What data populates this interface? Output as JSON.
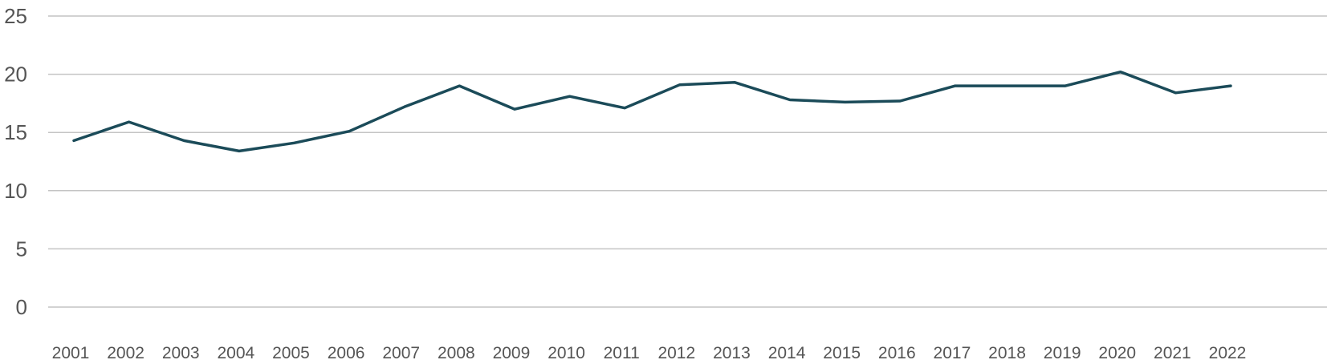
{
  "chart_data": {
    "type": "line",
    "title": "",
    "xlabel": "",
    "ylabel": "",
    "ylim": [
      0,
      25
    ],
    "yticks": [
      0,
      5,
      10,
      15,
      20,
      25
    ],
    "grid": true,
    "legend": "none",
    "categories": [
      "2001",
      "2002",
      "2003",
      "2004",
      "2005",
      "2006",
      "2007",
      "2008",
      "2009",
      "2010",
      "2011",
      "2012",
      "2013",
      "2014",
      "2015",
      "2016",
      "2017",
      "2018",
      "2019",
      "2020",
      "2021",
      "2022"
    ],
    "series": [
      {
        "color": "#1b4b59",
        "values": [
          14.3,
          15.9,
          14.3,
          13.4,
          14.1,
          15.1,
          17.2,
          19.0,
          17.0,
          18.1,
          17.1,
          19.1,
          19.3,
          17.8,
          17.6,
          17.7,
          19.0,
          19.0,
          19.0,
          20.2,
          18.4,
          19.0
        ]
      }
    ],
    "colors": {
      "grid": "#c4c4c4",
      "tick_text": "#555555"
    }
  }
}
